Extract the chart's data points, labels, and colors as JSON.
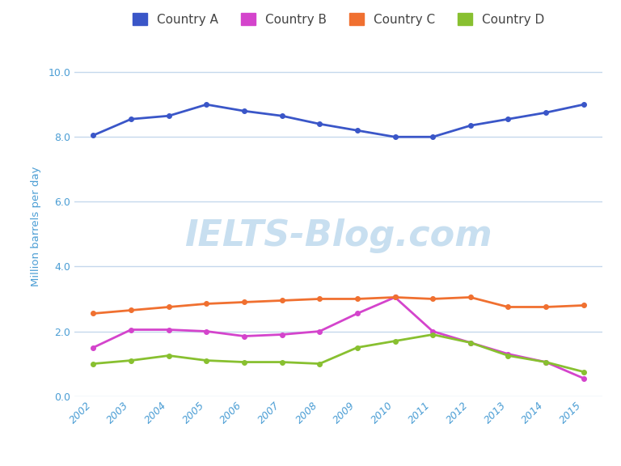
{
  "years": [
    2002,
    2003,
    2004,
    2005,
    2006,
    2007,
    2008,
    2009,
    2010,
    2011,
    2012,
    2013,
    2014,
    2015
  ],
  "country_a": [
    8.05,
    8.55,
    8.65,
    9.0,
    8.8,
    8.65,
    8.4,
    8.2,
    8.0,
    8.0,
    8.35,
    8.55,
    8.75,
    9.0
  ],
  "country_b": [
    1.5,
    2.05,
    2.05,
    2.0,
    1.85,
    1.9,
    2.0,
    2.55,
    3.05,
    2.0,
    1.65,
    1.3,
    1.05,
    0.55
  ],
  "country_c": [
    2.55,
    2.65,
    2.75,
    2.85,
    2.9,
    2.95,
    3.0,
    3.0,
    3.05,
    3.0,
    3.05,
    2.75,
    2.75,
    2.8
  ],
  "country_d": [
    1.0,
    1.1,
    1.25,
    1.1,
    1.05,
    1.05,
    1.0,
    1.5,
    1.7,
    1.9,
    1.65,
    1.25,
    1.05,
    0.75
  ],
  "colors": {
    "country_a": "#3a56c8",
    "country_b": "#d444cc",
    "country_c": "#f07030",
    "country_d": "#88c030"
  },
  "labels": {
    "country_a": "Country A",
    "country_b": "Country B",
    "country_c": "Country C",
    "country_d": "Country D"
  },
  "ylabel": "Million barrels per day",
  "ylim": [
    0.0,
    10.5
  ],
  "yticks": [
    0.0,
    2.0,
    4.0,
    6.0,
    8.0,
    10.0
  ],
  "background_color": "#ffffff",
  "grid_color": "#c5d8ec",
  "tick_color": "#4a9dd4",
  "label_color": "#4a9dd4",
  "watermark_text": "IELTS-Blog.com",
  "watermark_color": "#c8dff0",
  "marker": "o",
  "marker_size": 4,
  "line_width": 2.0
}
